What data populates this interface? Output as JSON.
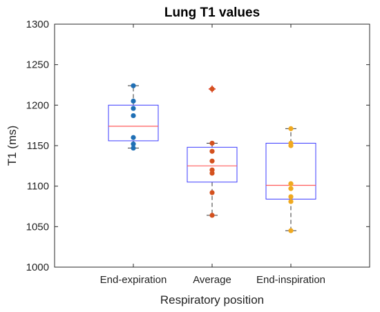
{
  "chart_data": {
    "type": "box",
    "title": "Lung T1 values",
    "xlabel": "Respiratory position",
    "ylabel": "T1 (ms)",
    "ylim": [
      1000,
      1300
    ],
    "yticks": [
      1000,
      1050,
      1100,
      1150,
      1200,
      1250,
      1300
    ],
    "categories": [
      "End-expiration",
      "Average",
      "End-inspiration"
    ],
    "grid": false,
    "box_color": "#3b3bff",
    "median_color": "#ff5a5a",
    "whisker_color": "#333333",
    "groups": [
      {
        "category": "End-expiration",
        "color": "#1f6fb5",
        "q1": 1156,
        "median": 1174,
        "q3": 1200,
        "whisker_low": 1147,
        "whisker_high": 1224,
        "outliers": [],
        "points": [
          1224,
          1205,
          1196,
          1187,
          1160,
          1152,
          1147
        ]
      },
      {
        "category": "Average",
        "color": "#d4511e",
        "q1": 1105,
        "median": 1125,
        "q3": 1148,
        "whisker_low": 1064,
        "whisker_high": 1153,
        "outliers": [
          1220
        ],
        "points": [
          1220,
          1153,
          1143,
          1131,
          1120,
          1116,
          1092,
          1064
        ]
      },
      {
        "category": "End-inspiration",
        "color": "#f0a920",
        "q1": 1084,
        "median": 1101,
        "q3": 1153,
        "whisker_low": 1045,
        "whisker_high": 1171,
        "outliers": [],
        "points": [
          1171,
          1153,
          1150,
          1103,
          1097,
          1087,
          1081,
          1045
        ]
      }
    ]
  }
}
